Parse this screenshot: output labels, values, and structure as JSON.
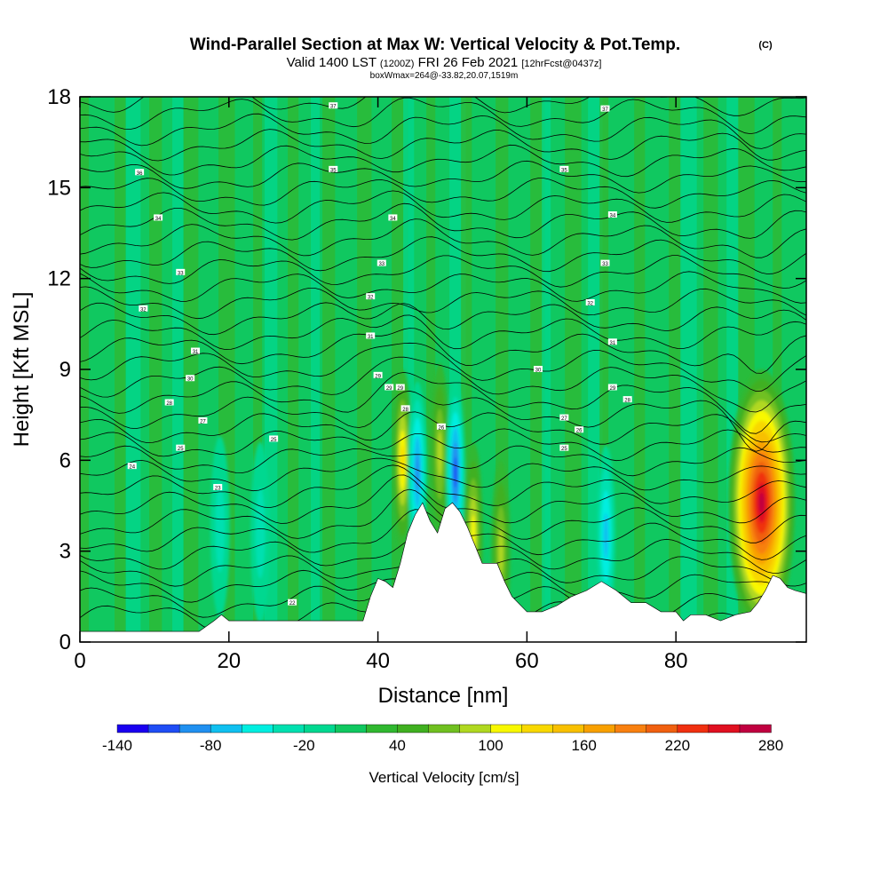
{
  "chart_data": {
    "type": "heatmap",
    "title": "Wind-Parallel Section at Max W: Vertical Velocity & Pot.Temp.",
    "title_tag": "(C)",
    "subtitle_main": "Valid 1400 LST",
    "subtitle_z": "(1200Z)",
    "subtitle_date": "FRI 26 Feb 2021",
    "subtitle_fcst": "[12hrFcst@0437z]",
    "subtitle2": "boxWmax=264@-33.82,20.07,1519m",
    "xlabel": "Distance [nm]",
    "ylabel": "Height [Kft MSL]",
    "xlim": [
      0,
      97.5
    ],
    "ylim": [
      0,
      18
    ],
    "x_ticks": [
      0,
      20,
      40,
      60,
      80
    ],
    "y_ticks": [
      0,
      3,
      6,
      9,
      12,
      15,
      18
    ],
    "colorbar_label": "Vertical Velocity [cm/s]",
    "colorbar_tick_values": [
      -140,
      -80,
      -20,
      40,
      100,
      160,
      220,
      280
    ],
    "colorbar_tick_labels": [
      "-140",
      "-80",
      "-20",
      "40",
      "100",
      "160",
      "220",
      "280"
    ],
    "colorbar_bins": [
      -140,
      -120,
      -100,
      -80,
      -60,
      -40,
      -20,
      0,
      20,
      40,
      60,
      80,
      100,
      120,
      140,
      160,
      180,
      200,
      220,
      240,
      260,
      280
    ],
    "colorbar_colors": [
      "#1a00f0",
      "#1f4df5",
      "#2090f0",
      "#10c0f0",
      "#00eee0",
      "#00e0b0",
      "#00d890",
      "#10c860",
      "#30b830",
      "#40b020",
      "#70c020",
      "#b0d820",
      "#f8f800",
      "#f8d800",
      "#f8c000",
      "#f8a000",
      "#f88010",
      "#f06010",
      "#f03010",
      "#e01020",
      "#c00040"
    ],
    "terrain_profile": {
      "x": [
        0,
        8,
        16,
        18,
        19,
        20,
        24,
        30,
        34,
        38,
        39,
        40,
        41,
        42,
        43,
        44,
        45,
        46,
        47,
        48,
        49,
        50,
        51,
        52,
        53,
        54,
        55,
        56,
        57,
        58,
        60,
        62,
        64,
        66,
        68,
        70,
        72,
        74,
        76,
        78,
        80,
        81,
        82,
        84,
        86,
        88,
        90,
        91,
        92,
        93,
        94,
        95,
        96,
        97.5
      ],
      "height_kft": [
        0.35,
        0.35,
        0.35,
        0.7,
        0.9,
        0.7,
        0.7,
        0.7,
        0.7,
        0.7,
        1.5,
        2.1,
        2.0,
        1.8,
        2.6,
        3.6,
        4.2,
        4.6,
        4.0,
        3.6,
        4.4,
        4.6,
        4.3,
        3.8,
        3.2,
        2.6,
        2.6,
        2.6,
        2.0,
        1.5,
        1.0,
        1.0,
        1.2,
        1.5,
        1.7,
        2.0,
        1.7,
        1.3,
        1.3,
        1.0,
        1.0,
        0.7,
        0.9,
        0.9,
        0.7,
        0.9,
        1.0,
        1.3,
        1.7,
        2.2,
        2.1,
        1.8,
        1.7,
        1.6
      ]
    },
    "vertical_velocity_features": [
      {
        "name": "main updraft",
        "x": 91.5,
        "z": 4.6,
        "w_cm_s": 264
      },
      {
        "name": "updraft near 43nm",
        "x": 43.3,
        "z": 6.0,
        "w_cm_s": 110
      },
      {
        "name": "updraft near 48nm",
        "x": 48.3,
        "z": 6.2,
        "w_cm_s": 80
      },
      {
        "name": "updraft near 52nm",
        "x": 52.8,
        "z": 3.6,
        "w_cm_s": 90
      },
      {
        "name": "updraft near 56nm",
        "x": 56.5,
        "z": 3.0,
        "w_cm_s": 70
      },
      {
        "name": "downdraft near 45nm",
        "x": 45.3,
        "z": 5.6,
        "w_cm_s": -100
      },
      {
        "name": "downdraft near 50nm",
        "x": 50.4,
        "z": 5.6,
        "w_cm_s": -110
      },
      {
        "name": "downdraft near 71nm",
        "x": 70.6,
        "z": 3.5,
        "w_cm_s": -80
      },
      {
        "name": "downdraft near 19nm",
        "x": 18.8,
        "z": 3.8,
        "w_cm_s": -40
      },
      {
        "name": "downdraft near 24nm",
        "x": 24.2,
        "z": 3.6,
        "w_cm_s": -40
      }
    ],
    "theta_contour_labels": [
      {
        "x": 8,
        "z": 15.5,
        "label": "36"
      },
      {
        "x": 34,
        "z": 17.7,
        "label": "37"
      },
      {
        "x": 34,
        "z": 15.6,
        "label": "35"
      },
      {
        "x": 70.5,
        "z": 17.6,
        "label": "37"
      },
      {
        "x": 65,
        "z": 15.6,
        "label": "35"
      },
      {
        "x": 10.5,
        "z": 14.0,
        "label": "34"
      },
      {
        "x": 42,
        "z": 14.0,
        "label": "34"
      },
      {
        "x": 71.5,
        "z": 14.1,
        "label": "34"
      },
      {
        "x": 13.5,
        "z": 12.2,
        "label": "33"
      },
      {
        "x": 40.5,
        "z": 12.5,
        "label": "33"
      },
      {
        "x": 70.5,
        "z": 12.5,
        "label": "33"
      },
      {
        "x": 39,
        "z": 11.4,
        "label": "32"
      },
      {
        "x": 8.5,
        "z": 11.0,
        "label": "32"
      },
      {
        "x": 68.5,
        "z": 11.2,
        "label": "32"
      },
      {
        "x": 39,
        "z": 10.1,
        "label": "31"
      },
      {
        "x": 15.5,
        "z": 9.6,
        "label": "31"
      },
      {
        "x": 71.5,
        "z": 9.9,
        "label": "31"
      },
      {
        "x": 14.8,
        "z": 8.7,
        "label": "30"
      },
      {
        "x": 61.5,
        "z": 9.0,
        "label": "30"
      },
      {
        "x": 40,
        "z": 8.8,
        "label": "29"
      },
      {
        "x": 41.5,
        "z": 8.4,
        "label": "29"
      },
      {
        "x": 43,
        "z": 8.4,
        "label": "29"
      },
      {
        "x": 71.5,
        "z": 8.4,
        "label": "29"
      },
      {
        "x": 12,
        "z": 7.9,
        "label": "28"
      },
      {
        "x": 43.7,
        "z": 7.7,
        "label": "28"
      },
      {
        "x": 73.5,
        "z": 8.0,
        "label": "28"
      },
      {
        "x": 16.5,
        "z": 7.3,
        "label": "27"
      },
      {
        "x": 65,
        "z": 7.4,
        "label": "27"
      },
      {
        "x": 48.5,
        "z": 7.1,
        "label": "26"
      },
      {
        "x": 67,
        "z": 7.0,
        "label": "26"
      },
      {
        "x": 13.5,
        "z": 6.4,
        "label": "25"
      },
      {
        "x": 26,
        "z": 6.7,
        "label": "25"
      },
      {
        "x": 65,
        "z": 6.4,
        "label": "25"
      },
      {
        "x": 7,
        "z": 5.8,
        "label": "24"
      },
      {
        "x": 18.5,
        "z": 5.1,
        "label": "23"
      },
      {
        "x": 28.5,
        "z": 1.3,
        "label": "22"
      }
    ]
  }
}
